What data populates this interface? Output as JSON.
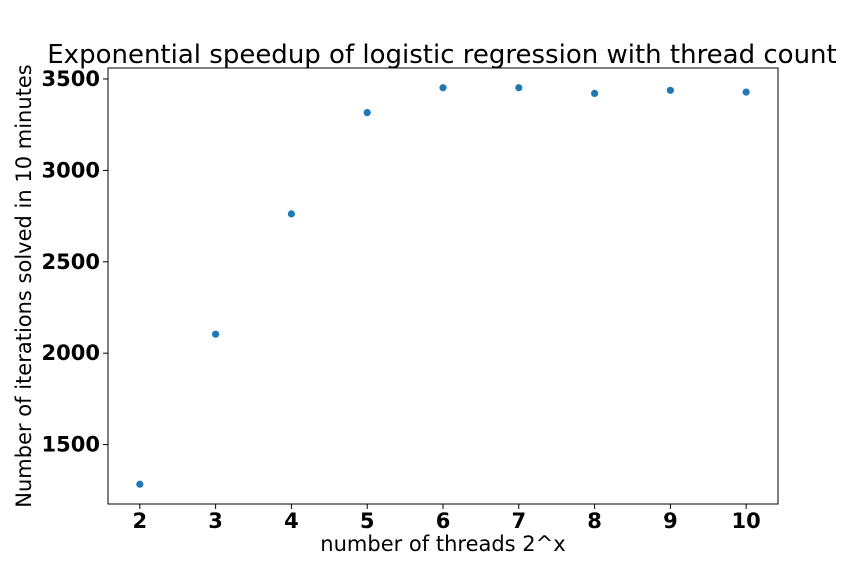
{
  "chart_data": {
    "type": "scatter",
    "title": "Exponential speedup of logistic regression with thread count",
    "xlabel": "number of threads 2^x",
    "ylabel": "Number of iterations solved in 10 minutes",
    "xlim": [
      1.58,
      10.42
    ],
    "ylim": [
      1175,
      3560
    ],
    "xticks": [
      2,
      3,
      4,
      5,
      6,
      7,
      8,
      9,
      10
    ],
    "yticks": [
      1500,
      2000,
      2500,
      3000,
      3500
    ],
    "grid": false,
    "series": [
      {
        "x": [
          2,
          3,
          4,
          5,
          6,
          7,
          8,
          9,
          10
        ],
        "y": [
          1283,
          2104,
          2762,
          3316,
          3452,
          3452,
          3421,
          3438,
          3428
        ],
        "color": "#1f77b4"
      }
    ]
  }
}
